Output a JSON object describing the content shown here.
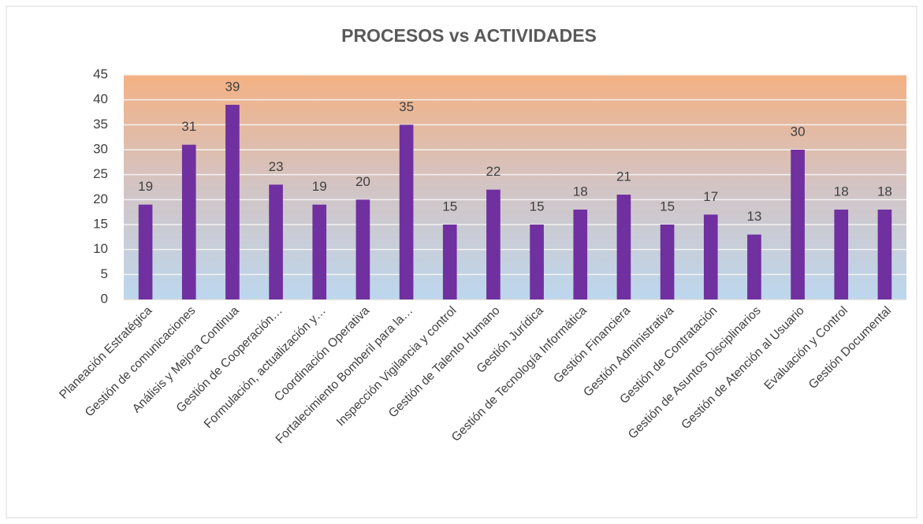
{
  "chart_data": {
    "type": "bar",
    "title": "PROCESOS vs ACTIVIDADES",
    "categories": [
      "Planeación Estratégica",
      "Gestión de comunicaciones",
      "Análisis y Mejora Continua",
      "Gestión de Cooperación…",
      "Formulación, actualización y…",
      "Coordinación Operativa",
      "Fortalecimiento Bomberil para la…",
      "Inspección Vigilancia y control",
      "Gestión de Talento Humano",
      "Gestión Jurídica",
      "Gestión de Tecnología Informática",
      "Gestión Financiera",
      "Gestión Administrativa",
      "Gestión de Contratación",
      "Gestión de Asuntos Disciplinarios",
      "Gestión de Atención al Usuario",
      "Evaluación y Control",
      "Gestión Documental"
    ],
    "values": [
      19,
      31,
      39,
      23,
      19,
      20,
      35,
      15,
      22,
      15,
      18,
      21,
      15,
      17,
      13,
      30,
      18,
      18
    ],
    "color": "#7030a0",
    "ylim": [
      0,
      45
    ],
    "yticks": [
      0,
      5,
      10,
      15,
      20,
      25,
      30,
      35,
      40,
      45
    ],
    "grid": true
  }
}
